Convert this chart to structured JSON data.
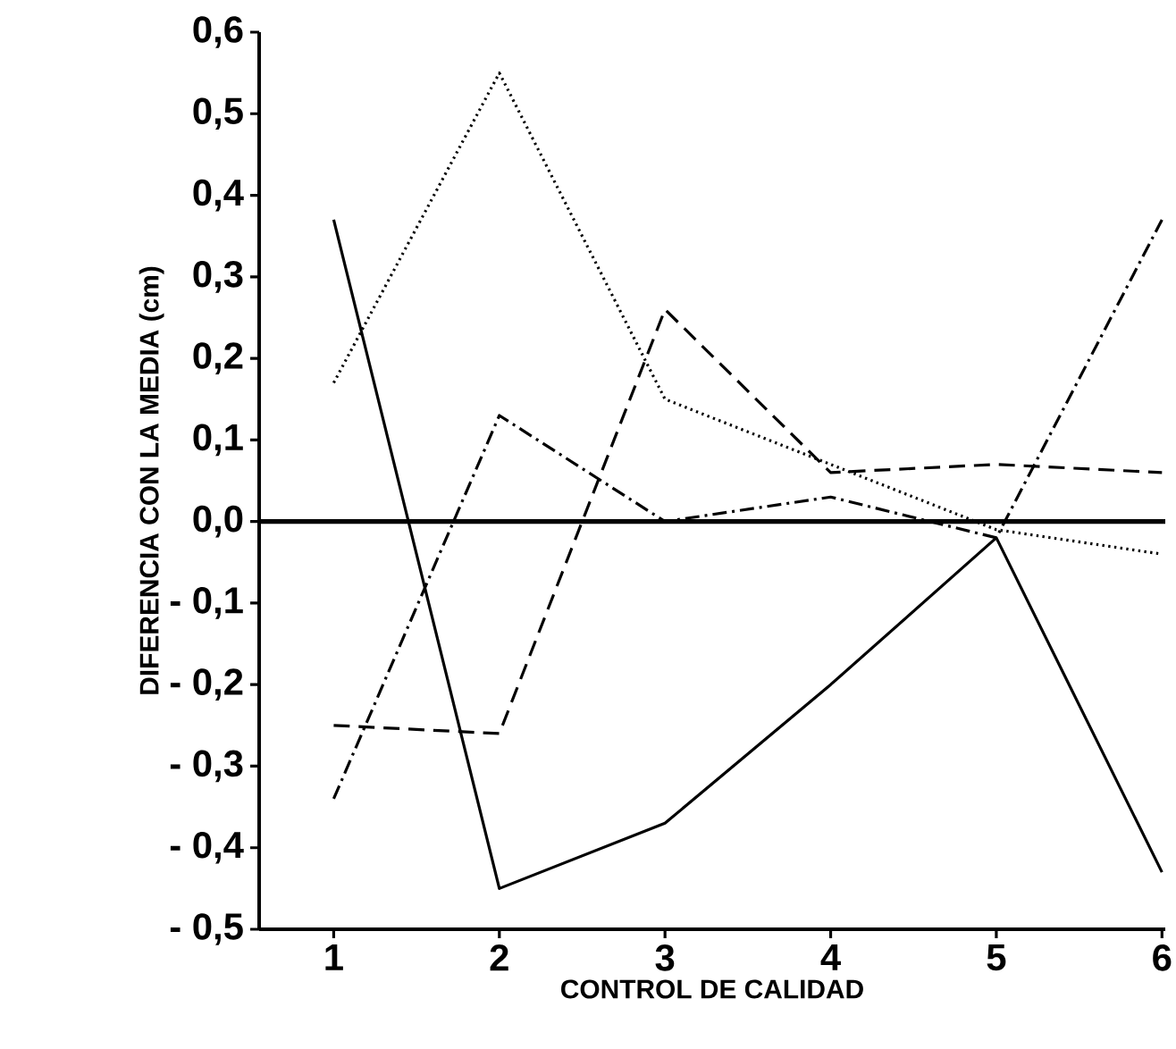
{
  "chart_data": {
    "type": "line",
    "xlabel": "CONTROL DE CALIDAD",
    "ylabel": "DIFERENCIA CON LA MEDIA (cm)",
    "x": [
      1,
      2,
      3,
      4,
      5,
      6
    ],
    "series": [
      {
        "color": "#000000",
        "line_style": "solid",
        "values": [
          0.37,
          -0.45,
          -0.37,
          -0.2,
          -0.02,
          -0.43
        ]
      },
      {
        "color": "#000000",
        "line_style": "dotted",
        "values": [
          0.17,
          0.55,
          0.15,
          0.07,
          -0.01,
          -0.04
        ]
      },
      {
        "color": "#000000",
        "line_style": "dashed",
        "values": [
          -0.25,
          -0.26,
          0.26,
          0.06,
          0.07,
          0.06
        ]
      },
      {
        "color": "#000000",
        "line_style": "dashdot",
        "values": [
          -0.34,
          0.13,
          0.0,
          0.03,
          -0.02,
          0.37
        ]
      }
    ],
    "xlim": [
      0.55,
      6.02
    ],
    "ylim": [
      -0.5,
      0.6
    ],
    "xticks": [
      1,
      2,
      3,
      4,
      5,
      6
    ],
    "yticks": [
      {
        "value": -0.5,
        "label": "- 0,5"
      },
      {
        "value": -0.4,
        "label": "- 0,4"
      },
      {
        "value": -0.3,
        "label": "- 0,3"
      },
      {
        "value": -0.2,
        "label": "- 0,2"
      },
      {
        "value": -0.1,
        "label": "- 0,1"
      },
      {
        "value": 0,
        "label": "0,0"
      },
      {
        "value": 0.1,
        "label": "0,1"
      },
      {
        "value": 0.2,
        "label": "0,2"
      },
      {
        "value": 0.3,
        "label": "0,3"
      },
      {
        "value": 0.4,
        "label": "0,4"
      },
      {
        "value": 0.5,
        "label": "0,5"
      },
      {
        "value": 0.6,
        "label": "0,6"
      }
    ],
    "ref_lines": [
      {
        "axis": "y",
        "value": 0,
        "color": "#000000",
        "line_style": "solid"
      }
    ],
    "grid": false,
    "marker": "none"
  }
}
